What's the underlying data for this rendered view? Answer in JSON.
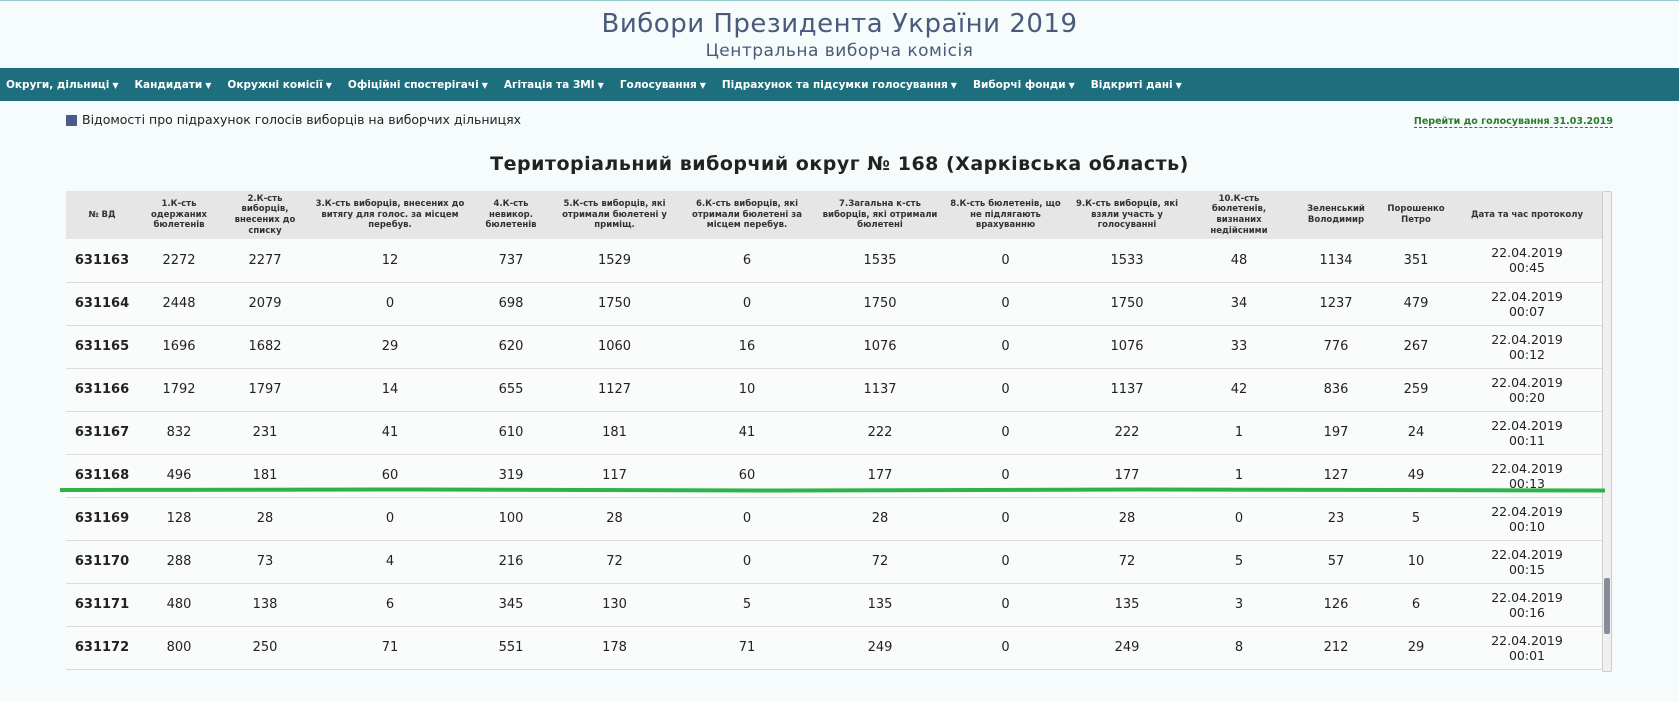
{
  "header": {
    "title": "Вибори Президента України 2019",
    "subtitle": "Центральна виборча комісія"
  },
  "nav": [
    "Округи, дільниці",
    "Кандидати",
    "Окружні комісії",
    "Офіційні спостерігачі",
    "Агітація та ЗМІ",
    "Голосування",
    "Підрахунок та підсумки голосування",
    "Виборчі фонди",
    "Відкриті дані"
  ],
  "info": {
    "text": "Відомості про підрахунок голосів виборців на виборчих дільницях",
    "link": "Перейти до голосування 31.03.2019"
  },
  "page_title": "Територіальний виборчий округ № 168 (Харківська область)",
  "table": {
    "columns": [
      "№ ВД",
      "1.К-сть одержаних бюлетенів",
      "2.К-сть виборців, внесених до списку",
      "3.К-сть виборців, внесених до витягу для голос. за місцем перебув.",
      "4.К-сть невикор. бюлетенів",
      "5.К-сть виборців, які отримали бюлетені у приміщ.",
      "6.К-сть виборців, які отримали бюлетені за місцем перебув.",
      "7.Загальна к-сть виборців, які отримали бюлетені",
      "8.К-сть бюлетенів, що не підлягають врахуванню",
      "9.К-сть виборців, які взяли участь у голосуванні",
      "10.К-сть бюлетенів, визнаних недійсними",
      "Зеленський Володимир",
      "Порошенко Петро",
      "Дата та час протоколу"
    ],
    "rows": [
      {
        "vd": "631163",
        "c1": "2272",
        "c2": "2277",
        "c3": "12",
        "c4": "737",
        "c5": "1529",
        "c6": "6",
        "c7": "1535",
        "c8": "0",
        "c9": "1533",
        "c10": "48",
        "zel": "1134",
        "por": "351",
        "date": "22.04.2019",
        "time": "00:45"
      },
      {
        "vd": "631164",
        "c1": "2448",
        "c2": "2079",
        "c3": "0",
        "c4": "698",
        "c5": "1750",
        "c6": "0",
        "c7": "1750",
        "c8": "0",
        "c9": "1750",
        "c10": "34",
        "zel": "1237",
        "por": "479",
        "date": "22.04.2019",
        "time": "00:07"
      },
      {
        "vd": "631165",
        "c1": "1696",
        "c2": "1682",
        "c3": "29",
        "c4": "620",
        "c5": "1060",
        "c6": "16",
        "c7": "1076",
        "c8": "0",
        "c9": "1076",
        "c10": "33",
        "zel": "776",
        "por": "267",
        "date": "22.04.2019",
        "time": "00:12"
      },
      {
        "vd": "631166",
        "c1": "1792",
        "c2": "1797",
        "c3": "14",
        "c4": "655",
        "c5": "1127",
        "c6": "10",
        "c7": "1137",
        "c8": "0",
        "c9": "1137",
        "c10": "42",
        "zel": "836",
        "por": "259",
        "date": "22.04.2019",
        "time": "00:20"
      },
      {
        "vd": "631167",
        "c1": "832",
        "c2": "231",
        "c3": "41",
        "c4": "610",
        "c5": "181",
        "c6": "41",
        "c7": "222",
        "c8": "0",
        "c9": "222",
        "c10": "1",
        "zel": "197",
        "por": "24",
        "date": "22.04.2019",
        "time": "00:11"
      },
      {
        "vd": "631168",
        "c1": "496",
        "c2": "181",
        "c3": "60",
        "c4": "319",
        "c5": "117",
        "c6": "60",
        "c7": "177",
        "c8": "0",
        "c9": "177",
        "c10": "1",
        "zel": "127",
        "por": "49",
        "date": "22.04.2019",
        "time": "00:13"
      },
      {
        "vd": "631169",
        "c1": "128",
        "c2": "28",
        "c3": "0",
        "c4": "100",
        "c5": "28",
        "c6": "0",
        "c7": "28",
        "c8": "0",
        "c9": "28",
        "c10": "0",
        "zel": "23",
        "por": "5",
        "date": "22.04.2019",
        "time": "00:10"
      },
      {
        "vd": "631170",
        "c1": "288",
        "c2": "73",
        "c3": "4",
        "c4": "216",
        "c5": "72",
        "c6": "0",
        "c7": "72",
        "c8": "0",
        "c9": "72",
        "c10": "5",
        "zel": "57",
        "por": "10",
        "date": "22.04.2019",
        "time": "00:15"
      },
      {
        "vd": "631171",
        "c1": "480",
        "c2": "138",
        "c3": "6",
        "c4": "345",
        "c5": "130",
        "c6": "5",
        "c7": "135",
        "c8": "0",
        "c9": "135",
        "c10": "3",
        "zel": "126",
        "por": "6",
        "date": "22.04.2019",
        "time": "00:16"
      },
      {
        "vd": "631172",
        "c1": "800",
        "c2": "250",
        "c3": "71",
        "c4": "551",
        "c5": "178",
        "c6": "71",
        "c7": "249",
        "c8": "0",
        "c9": "249",
        "c10": "8",
        "zel": "212",
        "por": "29",
        "date": "22.04.2019",
        "time": "00:01"
      }
    ]
  },
  "colors": {
    "nav_bg": "#1e6f7e",
    "title": "#4a5a7a",
    "annotation_line": "#2db34a"
  }
}
